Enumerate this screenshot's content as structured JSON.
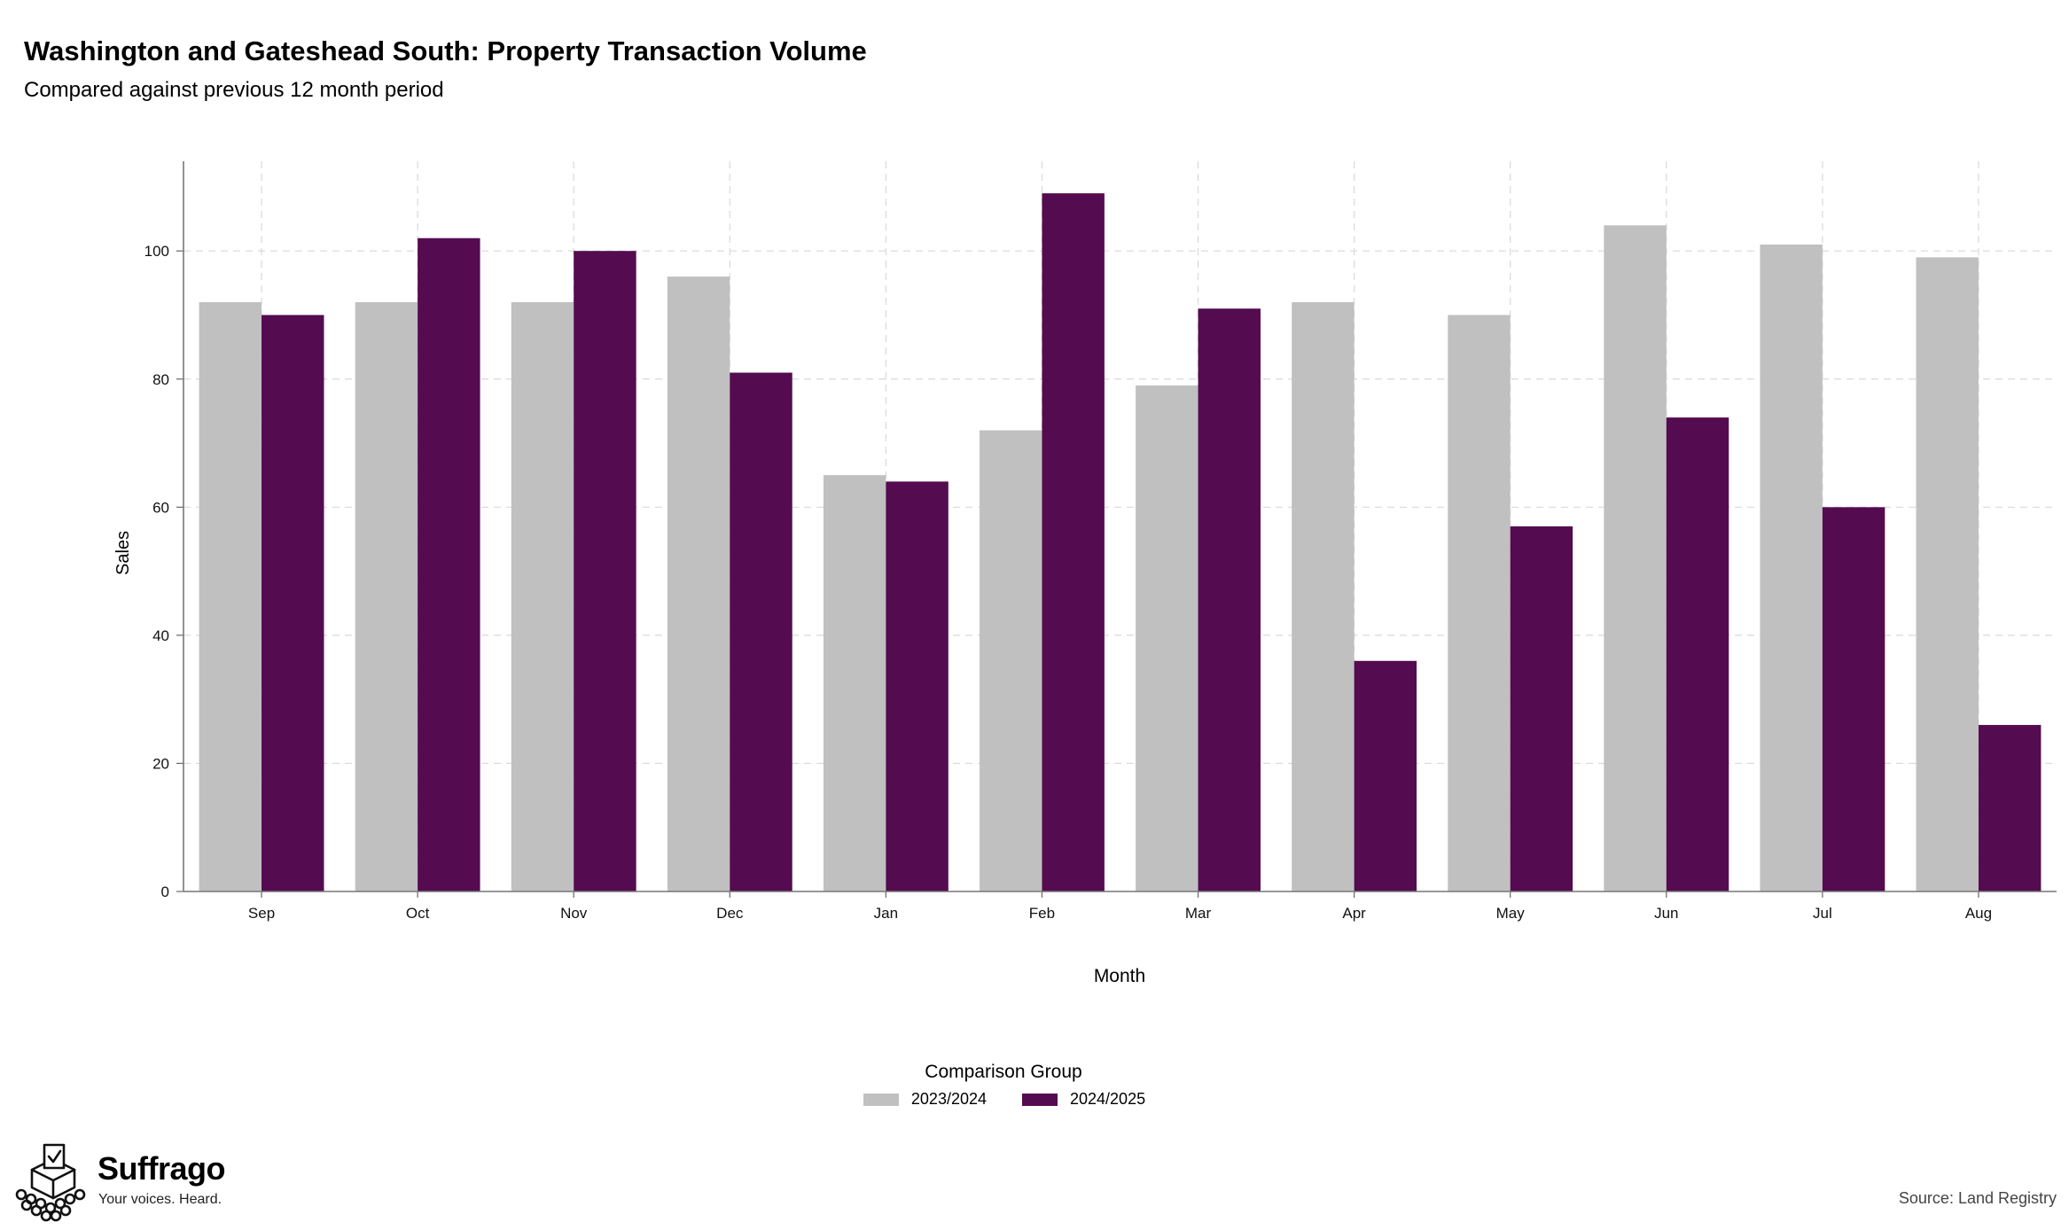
{
  "chart_data": {
    "type": "bar",
    "title": "Washington and Gateshead South: Property Transaction Volume",
    "subtitle": "Compared against previous 12 month period",
    "xlabel": "Month",
    "ylabel": "Sales",
    "categories": [
      "Sep",
      "Oct",
      "Nov",
      "Dec",
      "Jan",
      "Feb",
      "Mar",
      "Apr",
      "May",
      "Jun",
      "Jul",
      "Aug"
    ],
    "series": [
      {
        "name": "2023/2024",
        "color": "#c0c0c0",
        "values": [
          92,
          92,
          92,
          96,
          65,
          72,
          79,
          92,
          90,
          104,
          101,
          99
        ]
      },
      {
        "name": "2024/2025",
        "color": "#540b50",
        "values": [
          90,
          102,
          100,
          81,
          64,
          109,
          91,
          36,
          57,
          74,
          60,
          26
        ]
      }
    ],
    "ylim": [
      0,
      114
    ],
    "yticks": [
      0,
      20,
      40,
      60,
      80,
      100
    ],
    "grid": true,
    "legend": {
      "title": "Comparison Group",
      "placement": "bottom"
    },
    "source": "Source: Land Registry"
  },
  "branding": {
    "name": "Suffrago",
    "tagline": "Your voices. Heard.",
    "icon": "ballot-box-icon"
  }
}
